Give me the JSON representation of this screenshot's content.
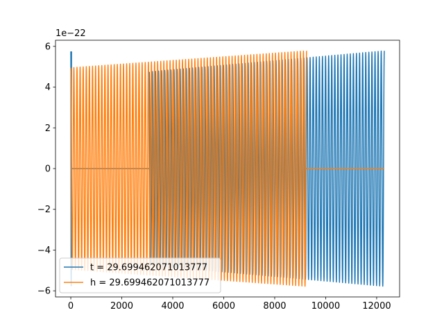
{
  "chart_data": {
    "type": "line",
    "title": "",
    "xlabel": "",
    "ylabel": "",
    "y_offset_label": "1e−22",
    "xlim": [
      -600,
      12900
    ],
    "ylim": [
      -6.3,
      6.3
    ],
    "x_ticks": [
      0,
      2000,
      4000,
      6000,
      8000,
      10000,
      12000
    ],
    "x_tick_labels": [
      "0",
      "2000",
      "4000",
      "6000",
      "8000",
      "10000",
      "12000"
    ],
    "y_ticks": [
      -6,
      -4,
      -2,
      0,
      2,
      4,
      6
    ],
    "y_tick_labels": [
      "−6",
      "−4",
      "−2",
      "0",
      "2",
      "4",
      "6"
    ],
    "grid": false,
    "legend_position": "lower-left",
    "series": [
      {
        "name": "t = 29.699462071013777",
        "color": "#1f77b4",
        "segments": [
          {
            "x_start": 0,
            "x_end": 30,
            "amp_start": 5.75,
            "amp_end": 5.75,
            "cycles": 1
          },
          {
            "x_start": 30,
            "x_end": 3080,
            "flat_value": 0
          },
          {
            "x_start": 3080,
            "x_end": 12300,
            "amp_start": 4.75,
            "amp_end": 5.78,
            "cycles": 76
          }
        ]
      },
      {
        "name": "h = 29.699462071013777",
        "color": "#ff7f0e",
        "segments": [
          {
            "x_start": 0,
            "x_end": 9250,
            "amp_start": 4.95,
            "amp_end": 5.78,
            "cycles": 76
          },
          {
            "x_start": 9250,
            "x_end": 12300,
            "flat_value": 0
          }
        ]
      }
    ]
  }
}
